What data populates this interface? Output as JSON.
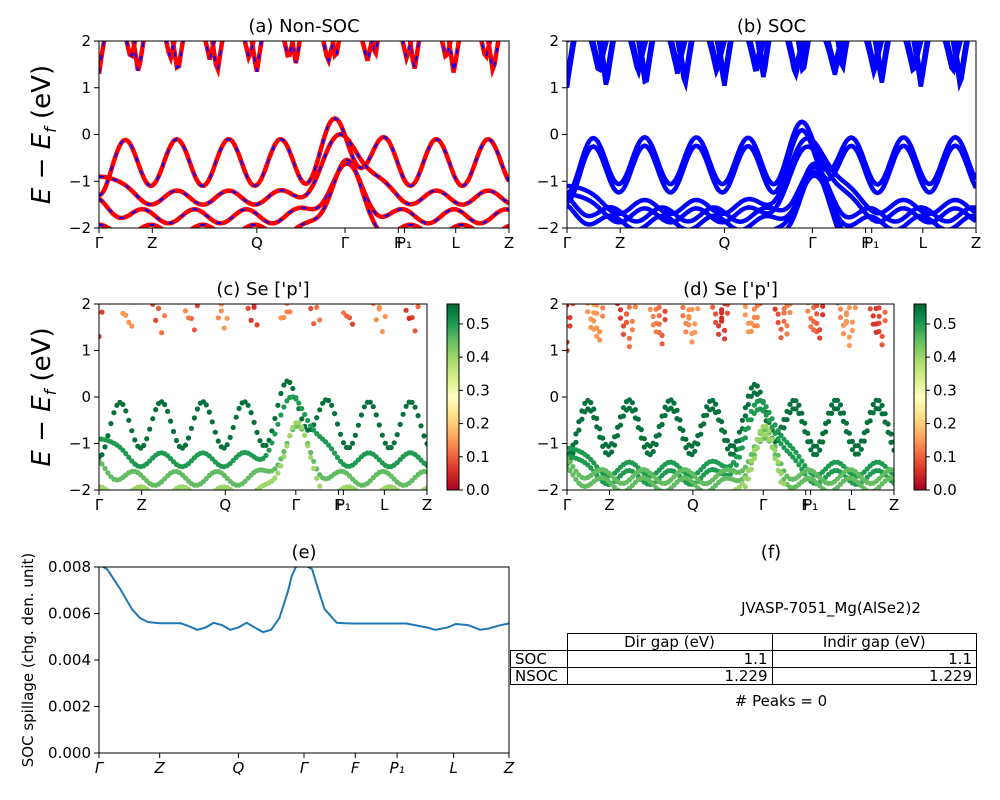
{
  "chart_data": [
    {
      "id": "a",
      "type": "line",
      "title": "(a) Non-SOC",
      "ylabel": "E − E_f (eV)",
      "ylim": [
        -2,
        2
      ],
      "yticks": [
        -2,
        -1,
        0,
        1,
        2
      ],
      "kpath": [
        "Γ",
        "Z",
        "Q",
        "Γ",
        "F",
        "P₁",
        "L",
        "Z"
      ],
      "kpos": [
        0,
        0.13,
        0.385,
        0.6,
        0.73,
        0.745,
        0.87,
        1.0
      ],
      "series": [
        {
          "color": "#ff0000",
          "dash_color": "#0000ff"
        }
      ]
    },
    {
      "id": "b",
      "type": "line",
      "title": "(b) SOC",
      "ylim": [
        -2,
        2
      ],
      "yticks": [
        -2,
        -1,
        0,
        1,
        2
      ],
      "kpath": [
        "Γ",
        "Z",
        "Q",
        "Γ",
        "F",
        "P₁",
        "L",
        "Z"
      ],
      "kpos": [
        0,
        0.13,
        0.385,
        0.6,
        0.73,
        0.745,
        0.87,
        1.0
      ],
      "series": [
        {
          "color": "#0000ff"
        }
      ]
    },
    {
      "id": "c",
      "type": "scatter",
      "title": "(c)  Se ['p']",
      "ylabel": "E − E_f (eV)",
      "ylim": [
        -2,
        2
      ],
      "yticks": [
        -2,
        -1,
        0,
        1,
        2
      ],
      "kpath": [
        "Γ",
        "Z",
        "Q",
        "Γ",
        "F",
        "P₁",
        "L",
        "Z"
      ],
      "kpos": [
        0,
        0.13,
        0.385,
        0.6,
        0.73,
        0.745,
        0.87,
        1.0
      ],
      "colorbar": {
        "min": 0.0,
        "max": 0.56,
        "ticks": [
          "0.0",
          "0.1",
          "0.2",
          "0.3",
          "0.4",
          "0.5"
        ],
        "colormap": "RdYlGn"
      }
    },
    {
      "id": "d",
      "type": "scatter",
      "title": "(d) Se ['p']",
      "ylim": [
        -2,
        2
      ],
      "yticks": [
        -2,
        -1,
        0,
        1,
        2
      ],
      "kpath": [
        "Γ",
        "Z",
        "Q",
        "Γ",
        "F",
        "P₁",
        "L",
        "Z"
      ],
      "kpos": [
        0,
        0.13,
        0.385,
        0.6,
        0.73,
        0.745,
        0.87,
        1.0
      ],
      "colorbar": {
        "min": 0.0,
        "max": 0.56,
        "ticks": [
          "0.0",
          "0.1",
          "0.2",
          "0.3",
          "0.4",
          "0.5"
        ],
        "colormap": "RdYlGn"
      }
    },
    {
      "id": "e",
      "type": "line",
      "title": "(e)",
      "ylabel": "SOC spillage (chg. den. unit)",
      "ylim": [
        0,
        0.008
      ],
      "yticks": [
        "0.000",
        "0.002",
        "0.004",
        "0.006",
        "0.008"
      ],
      "kpath": [
        "Γ",
        "Z",
        "Q",
        "Γ",
        "F",
        "P₁",
        "L",
        "Z"
      ],
      "kpos": [
        0,
        0.148,
        0.34,
        0.5,
        0.625,
        0.727,
        0.865,
        1.0
      ],
      "series": [
        {
          "color": "#1f77b4",
          "x": [
            0,
            0.02,
            0.05,
            0.08,
            0.1,
            0.12,
            0.15,
            0.18,
            0.2,
            0.22,
            0.24,
            0.26,
            0.28,
            0.3,
            0.32,
            0.34,
            0.36,
            0.38,
            0.4,
            0.42,
            0.44,
            0.46,
            0.47,
            0.48,
            0.5,
            0.52,
            0.53,
            0.55,
            0.58,
            0.6,
            0.62,
            0.65,
            0.7,
            0.72,
            0.75,
            0.77,
            0.8,
            0.82,
            0.85,
            0.87,
            0.9,
            0.93,
            0.95,
            0.98,
            1.0
          ],
          "values": [
            0.0081,
            0.0079,
            0.0071,
            0.0062,
            0.0058,
            0.00563,
            0.00558,
            0.00558,
            0.00558,
            0.00545,
            0.0053,
            0.0054,
            0.0056,
            0.0055,
            0.0053,
            0.0054,
            0.0056,
            0.0054,
            0.0052,
            0.0053,
            0.0058,
            0.0069,
            0.0076,
            0.008,
            0.0081,
            0.0079,
            0.0073,
            0.0062,
            0.0056,
            0.00558,
            0.00557,
            0.00557,
            0.00557,
            0.00557,
            0.00557,
            0.0055,
            0.0054,
            0.0053,
            0.0054,
            0.00555,
            0.0055,
            0.0053,
            0.00535,
            0.0055,
            0.00557
          ]
        }
      ]
    }
  ],
  "panel_f": {
    "title": "(f)",
    "material": "JVASP-7051_Mg(AlSe2)2",
    "col_headers": [
      "Dir gap (eV)",
      "Indir gap (eV)"
    ],
    "rows": [
      {
        "label": "SOC",
        "dir": "1.1",
        "indir": "1.1"
      },
      {
        "label": "NSOC",
        "dir": "1.229",
        "indir": "1.229"
      }
    ],
    "peaks": "# Peaks = 0"
  }
}
